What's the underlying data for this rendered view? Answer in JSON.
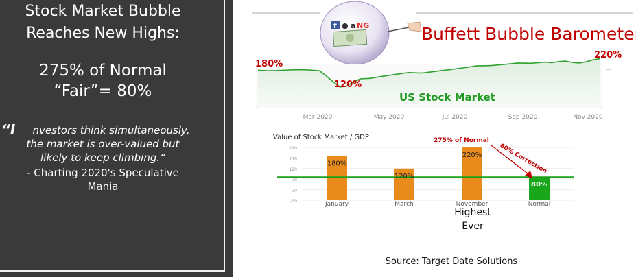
{
  "left_panel": {
    "headline_line1": "Stock Market Bubble",
    "headline_line2": "Reaches New Highs:",
    "pct_line1": "275% of Normal",
    "pct_line2": "“Fair”= 80%",
    "quote_open": "“I",
    "quote_line1": "nvestors think simultaneously,",
    "quote_line2": "the market is over-valued but",
    "quote_line3": "likely to keep climbing.“",
    "attribution_line1": "- Charting 2020's Speculative",
    "attribution_line2": "Mania"
  },
  "header": {
    "title": "Buffett Bubble Barometer",
    "logo_text_f": "f",
    "logo_text_a": "a",
    "logo_text_ng": "NG"
  },
  "colors": {
    "panel_bg": "#3a3a3a",
    "title_red": "#c00000",
    "bar_orange": "#e88b1c",
    "bar_green": "#1aa61a",
    "line_green": "#2ea12e",
    "label_green": "#1f9a1f",
    "arrow_red": "#c00000"
  },
  "chart_data": [
    {
      "type": "line",
      "title": "US Stock Market",
      "x_tick_labels": [
        "Mar 2020",
        "May 2020",
        "Jul 2020",
        "Sep 2020",
        "Nov 2020"
      ],
      "annotations": [
        "180%",
        "120%",
        "220%"
      ],
      "x": [
        0,
        0.03,
        0.06,
        0.09,
        0.12,
        0.15,
        0.18,
        0.2,
        0.22,
        0.24,
        0.26,
        0.28,
        0.3,
        0.33,
        0.36,
        0.4,
        0.44,
        0.48,
        0.52,
        0.56,
        0.6,
        0.64,
        0.68,
        0.72,
        0.76,
        0.8,
        0.84,
        0.86,
        0.88,
        0.9,
        0.92,
        0.94,
        0.96,
        0.98,
        1.0
      ],
      "y": [
        180,
        178,
        179,
        181,
        182,
        181,
        178,
        160,
        140,
        122,
        125,
        140,
        150,
        152,
        158,
        165,
        172,
        170,
        176,
        182,
        188,
        195,
        196,
        200,
        205,
        204,
        208,
        206,
        210,
        212,
        207,
        205,
        209,
        216,
        220
      ]
    },
    {
      "type": "bar",
      "title": "Value of Stock Market / GDP",
      "categories": [
        "January",
        "March",
        "November",
        "Normal"
      ],
      "values": [
        180,
        120,
        220,
        80
      ],
      "value_labels": [
        "180%",
        "120%",
        "220%",
        "80%"
      ],
      "y_tick_labels": [
        "220",
        "170",
        "120",
        "70",
        "20",
        "-30"
      ],
      "ylim": [
        -30,
        220
      ],
      "reference_line": 80,
      "annotation_top": "275% of Normal",
      "annotation_arrow": "60% Correction",
      "under_label_line1": "Highest",
      "under_label_line2": "Ever"
    }
  ],
  "source": "Source: Target Date Solutions"
}
